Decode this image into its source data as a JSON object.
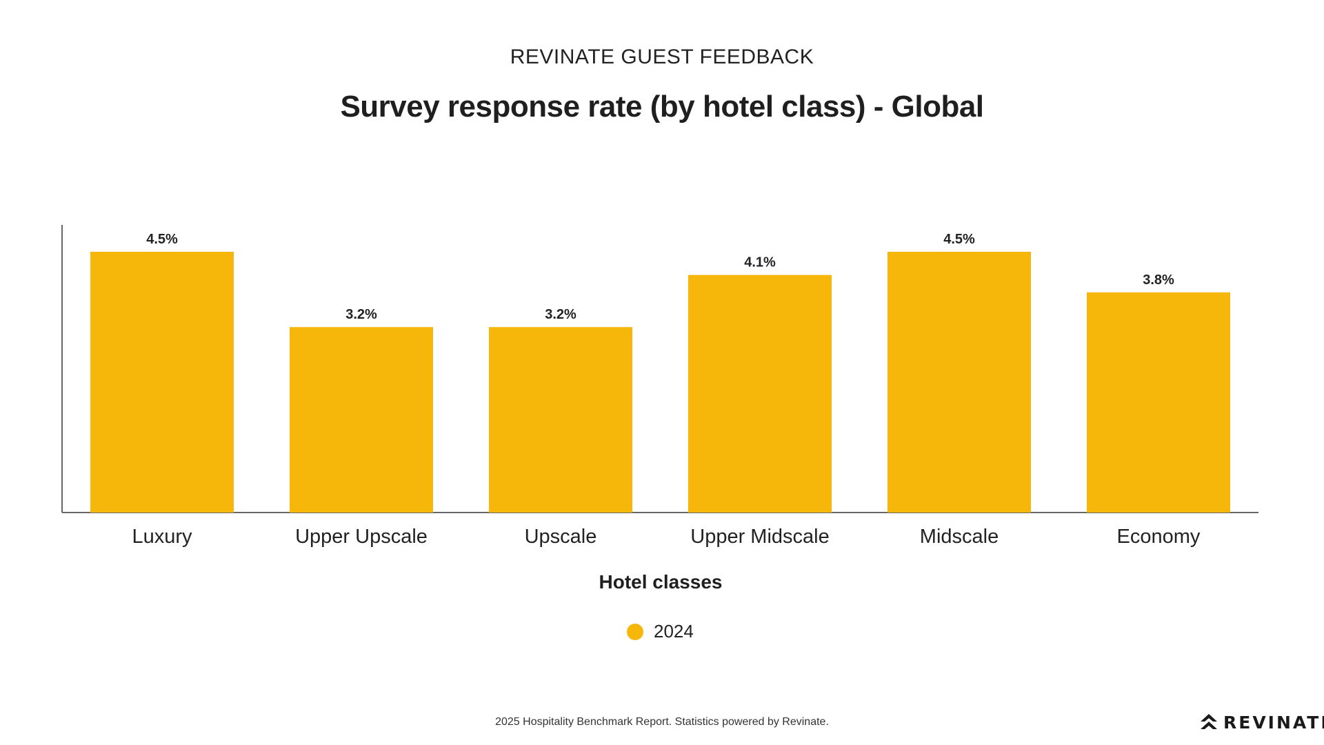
{
  "header": {
    "supertitle": "REVINATE GUEST FEEDBACK"
  },
  "footer": {
    "source": "2025 Hospitality Benchmark Report. Statistics powered by Revinate.",
    "logo_text": "REVINATE"
  },
  "colors": {
    "bar": "#F6B70A",
    "axis": "#666666",
    "text": "#222222"
  },
  "chart_data": {
    "type": "bar",
    "title": "Survey response rate (by hotel class) - Global",
    "xlabel": "Hotel classes",
    "ylabel": "",
    "categories": [
      "Luxury",
      "Upper Upscale",
      "Upscale",
      "Upper Midscale",
      "Midscale",
      "Economy"
    ],
    "series": [
      {
        "name": "2024",
        "values": [
          4.5,
          3.2,
          3.2,
          4.1,
          4.5,
          3.8
        ],
        "labels": [
          "4.5%",
          "3.2%",
          "3.2%",
          "4.1%",
          "4.5%",
          "3.8%"
        ]
      }
    ],
    "ylim": [
      0,
      4.5
    ],
    "grid": false,
    "legend": "bottom-center"
  }
}
